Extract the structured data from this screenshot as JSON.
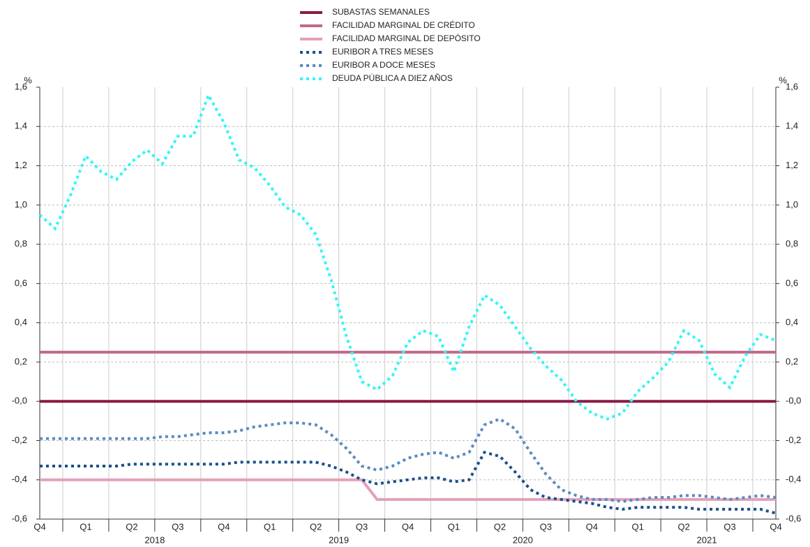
{
  "chart_data": {
    "type": "line",
    "y_unit": "%",
    "categories": [
      "Q4",
      null,
      null,
      "Q1",
      null,
      null,
      "Q2",
      null,
      null,
      "Q3",
      null,
      null,
      "Q4",
      null,
      null,
      "Q1",
      null,
      null,
      "Q2",
      null,
      null,
      "Q3",
      null,
      null,
      "Q4",
      null,
      null,
      "Q1",
      null,
      null,
      "Q2",
      null,
      null,
      "Q3",
      null,
      null,
      "Q4",
      null,
      null,
      "Q1",
      null,
      null,
      "Q2",
      null,
      null,
      "Q3",
      null,
      null,
      "Q4"
    ],
    "years": [
      "2018",
      "2019",
      "2020",
      "2021"
    ],
    "ylim": [
      -0.6,
      1.6
    ],
    "yticks": [
      {
        "value": -0.6,
        "label": "-0,6"
      },
      {
        "value": -0.4,
        "label": "-0,4"
      },
      {
        "value": -0.2,
        "label": "-0,2"
      },
      {
        "value": 0,
        "label": "-0,0"
      },
      {
        "value": 0.2,
        "label": "0,2"
      },
      {
        "value": 0.4,
        "label": "0,4"
      },
      {
        "value": 0.6,
        "label": "0,6"
      },
      {
        "value": 0.8,
        "label": "0,8"
      },
      {
        "value": 1.0,
        "label": "1,0"
      },
      {
        "value": 1.2,
        "label": "1,2"
      },
      {
        "value": 1.4,
        "label": "1,4"
      },
      {
        "value": 1.6,
        "label": "1,6"
      }
    ],
    "grid": true,
    "series": [
      {
        "name": "SUBASTAS SEMANALES",
        "color": "#8b1a45",
        "line_style": "solid",
        "values": [
          0,
          0,
          0,
          0,
          0,
          0,
          0,
          0,
          0,
          0,
          0,
          0,
          0,
          0,
          0,
          0,
          0,
          0,
          0,
          0,
          0,
          0,
          0,
          0,
          0,
          0,
          0,
          0,
          0,
          0,
          0,
          0,
          0,
          0,
          0,
          0,
          0,
          0,
          0,
          0,
          0,
          0,
          0,
          0,
          0,
          0,
          0,
          0,
          0
        ]
      },
      {
        "name": "FACILIDAD MARGINAL DE CRÉDITO",
        "color": "#c4668a",
        "line_style": "solid",
        "values": [
          0.25,
          0.25,
          0.25,
          0.25,
          0.25,
          0.25,
          0.25,
          0.25,
          0.25,
          0.25,
          0.25,
          0.25,
          0.25,
          0.25,
          0.25,
          0.25,
          0.25,
          0.25,
          0.25,
          0.25,
          0.25,
          0.25,
          0.25,
          0.25,
          0.25,
          0.25,
          0.25,
          0.25,
          0.25,
          0.25,
          0.25,
          0.25,
          0.25,
          0.25,
          0.25,
          0.25,
          0.25,
          0.25,
          0.25,
          0.25,
          0.25,
          0.25,
          0.25,
          0.25,
          0.25,
          0.25,
          0.25,
          0.25,
          0.25
        ]
      },
      {
        "name": "FACILIDAD MARGINAL DE DEPÓSITO",
        "color": "#e3a0b8",
        "line_style": "solid",
        "values": [
          -0.4,
          -0.4,
          -0.4,
          -0.4,
          -0.4,
          -0.4,
          -0.4,
          -0.4,
          -0.4,
          -0.4,
          -0.4,
          -0.4,
          -0.4,
          -0.4,
          -0.4,
          -0.4,
          -0.4,
          -0.4,
          -0.4,
          -0.4,
          -0.4,
          -0.4,
          -0.5,
          -0.5,
          -0.5,
          -0.5,
          -0.5,
          -0.5,
          -0.5,
          -0.5,
          -0.5,
          -0.5,
          -0.5,
          -0.5,
          -0.5,
          -0.5,
          -0.5,
          -0.5,
          -0.5,
          -0.5,
          -0.5,
          -0.5,
          -0.5,
          -0.5,
          -0.5,
          -0.5,
          -0.5,
          -0.5,
          -0.5
        ]
      },
      {
        "name": "EURIBOR A TRES MESES",
        "color": "#1a4f8c",
        "line_style": "dotted",
        "values": [
          -0.33,
          -0.33,
          -0.33,
          -0.33,
          -0.33,
          -0.33,
          -0.32,
          -0.32,
          -0.32,
          -0.32,
          -0.32,
          -0.32,
          -0.32,
          -0.31,
          -0.31,
          -0.31,
          -0.31,
          -0.31,
          -0.31,
          -0.33,
          -0.36,
          -0.4,
          -0.42,
          -0.41,
          -0.4,
          -0.39,
          -0.39,
          -0.41,
          -0.4,
          -0.26,
          -0.28,
          -0.36,
          -0.45,
          -0.49,
          -0.5,
          -0.51,
          -0.52,
          -0.54,
          -0.55,
          -0.54,
          -0.54,
          -0.54,
          -0.54,
          -0.55,
          -0.55,
          -0.55,
          -0.55,
          -0.55,
          -0.57
        ]
      },
      {
        "name": "EURIBOR A DOCE MESES",
        "color": "#5b8ac0",
        "line_style": "dotted",
        "values": [
          -0.19,
          -0.19,
          -0.19,
          -0.19,
          -0.19,
          -0.19,
          -0.19,
          -0.19,
          -0.18,
          -0.18,
          -0.17,
          -0.16,
          -0.16,
          -0.15,
          -0.13,
          -0.12,
          -0.11,
          -0.11,
          -0.12,
          -0.17,
          -0.24,
          -0.33,
          -0.35,
          -0.33,
          -0.29,
          -0.27,
          -0.26,
          -0.29,
          -0.26,
          -0.12,
          -0.09,
          -0.14,
          -0.26,
          -0.37,
          -0.45,
          -0.48,
          -0.5,
          -0.5,
          -0.51,
          -0.5,
          -0.49,
          -0.49,
          -0.48,
          -0.48,
          -0.49,
          -0.5,
          -0.49,
          -0.48,
          -0.49
        ]
      },
      {
        "name": "DEUDA PÚBLICA A DIEZ AÑOS",
        "color": "#33f5f5",
        "line_style": "dotted",
        "values": [
          0.95,
          0.88,
          1.05,
          1.25,
          1.17,
          1.13,
          1.22,
          1.28,
          1.21,
          1.35,
          1.35,
          1.56,
          1.42,
          1.23,
          1.19,
          1.1,
          0.99,
          0.95,
          0.85,
          0.62,
          0.33,
          0.1,
          0.06,
          0.13,
          0.3,
          0.36,
          0.33,
          0.15,
          0.38,
          0.54,
          0.49,
          0.38,
          0.27,
          0.18,
          0.11,
          0.0,
          -0.06,
          -0.09,
          -0.06,
          0.05,
          0.12,
          0.2,
          0.36,
          0.31,
          0.14,
          0.07,
          0.23,
          0.34,
          0.31
        ]
      }
    ]
  }
}
